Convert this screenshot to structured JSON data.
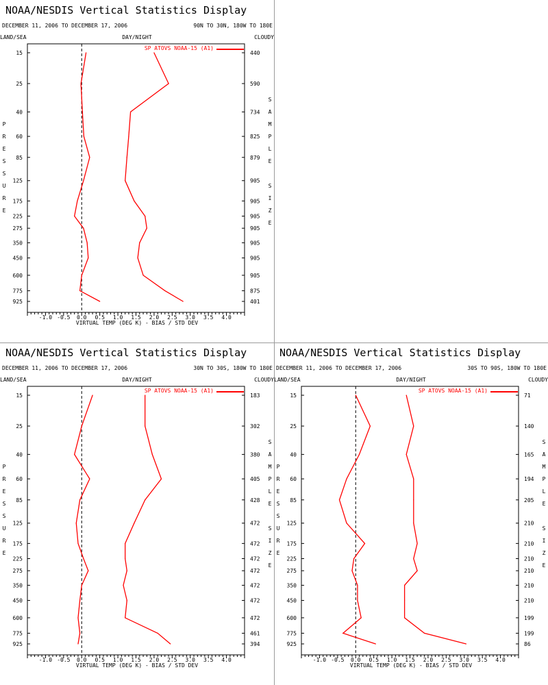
{
  "colors": {
    "series": "#ff0000",
    "axis": "#000000",
    "zero_line": "#000000"
  },
  "chart_data": [
    {
      "type": "line",
      "title": "NOAA/NESDIS Vertical Statistics Display",
      "date_range": "DECEMBER 11, 2006 TO DECEMBER 17, 2006",
      "region": "90N TO 30N, 180W TO 180E",
      "left_header": "LAND/SEA",
      "center_header": "DAY/NIGHT",
      "right_header": "CLOUDY",
      "xlabel": "VIRTUAL TEMP (DEG K) - BIAS / STD DEV",
      "ylabel": "PRESSURE",
      "right_label": "SAMPLE SIZE",
      "legend": "SP ATOVS NOAA-15 (A1)",
      "xlim": [
        -1.5,
        4.5
      ],
      "x_ticks": [
        "-1.0",
        "-0.5",
        "0.0",
        "0.5",
        "1.0",
        "1.5",
        "2.0",
        "2.5",
        "3.0",
        "3.5",
        "4.0"
      ],
      "pressure_levels": [
        15,
        25,
        40,
        60,
        85,
        125,
        175,
        225,
        275,
        350,
        450,
        600,
        775,
        925
      ],
      "sample_size": [
        "440",
        "590",
        "734",
        "825",
        "879",
        "905",
        "905",
        "905",
        "905",
        "905",
        "905",
        "905",
        "875",
        "401"
      ],
      "series": [
        {
          "name": "bias",
          "values": [
            0.12,
            -0.02,
            0.02,
            0.06,
            0.22,
            0.05,
            -0.12,
            -0.2,
            0.05,
            0.15,
            0.18,
            0.0,
            -0.05,
            0.5
          ]
        },
        {
          "name": "std_dev",
          "values": [
            2.0,
            2.4,
            1.35,
            1.3,
            1.25,
            1.2,
            1.45,
            1.75,
            1.8,
            1.6,
            1.55,
            1.7,
            2.3,
            2.8
          ]
        }
      ]
    },
    {
      "type": "line",
      "title": "NOAA/NESDIS Vertical Statistics Display",
      "date_range": "DECEMBER 11, 2006 TO DECEMBER 17, 2006",
      "region": "30N TO 30S, 180W TO 180E",
      "left_header": "LAND/SEA",
      "center_header": "DAY/NIGHT",
      "right_header": "CLOUDY",
      "xlabel": "VIRTUAL TEMP (DEG K) - BIAS / STD DEV",
      "ylabel": "PRESSURE",
      "right_label": "SAMPLE SIZE",
      "legend": "SP ATOVS NOAA-15 (A1)",
      "xlim": [
        -1.5,
        4.5
      ],
      "x_ticks": [
        "-1.0",
        "-0.5",
        "0.0",
        "0.5",
        "1.0",
        "1.5",
        "2.0",
        "2.5",
        "3.0",
        "3.5",
        "4.0"
      ],
      "pressure_levels": [
        15,
        25,
        40,
        60,
        85,
        125,
        175,
        225,
        275,
        350,
        450,
        600,
        775,
        925
      ],
      "sample_size": [
        "183",
        "302",
        "380",
        "405",
        "428",
        "472",
        "472",
        "472",
        "472",
        "472",
        "472",
        "472",
        "461",
        "394"
      ],
      "series": [
        {
          "name": "bias",
          "values": [
            0.3,
            0.0,
            -0.2,
            0.22,
            -0.05,
            -0.15,
            -0.1,
            0.05,
            0.18,
            0.0,
            -0.05,
            -0.1,
            -0.05,
            -0.1
          ]
        },
        {
          "name": "std_dev",
          "values": [
            1.75,
            1.75,
            1.95,
            2.2,
            1.75,
            1.45,
            1.2,
            1.2,
            1.25,
            1.15,
            1.25,
            1.2,
            2.1,
            2.45
          ]
        }
      ]
    },
    {
      "type": "line",
      "title": "NOAA/NESDIS Vertical Statistics Display",
      "date_range": "DECEMBER 11, 2006 TO DECEMBER 17, 2006",
      "region": "30S TO 90S, 180W TO 180E",
      "left_header": "LAND/SEA",
      "center_header": "DAY/NIGHT",
      "right_header": "CLOUDY",
      "xlabel": "VIRTUAL TEMP (DEG K) - BIAS / STD DEV",
      "ylabel": "PRESSURE",
      "right_label": "SAMPLE SIZE",
      "legend": "SP ATOVS NOAA-15 (A1)",
      "xlim": [
        -1.5,
        4.5
      ],
      "x_ticks": [
        "-1.0",
        "-0.5",
        "0.0",
        "0.5",
        "1.0",
        "1.5",
        "2.0",
        "2.5",
        "3.0",
        "3.5",
        "4.0"
      ],
      "pressure_levels": [
        15,
        25,
        40,
        60,
        85,
        125,
        175,
        225,
        275,
        350,
        450,
        600,
        775,
        925
      ],
      "sample_size": [
        "71",
        "140",
        "165",
        "194",
        "205",
        "210",
        "210",
        "210",
        "210",
        "210",
        "210",
        "199",
        "199",
        "86"
      ],
      "series": [
        {
          "name": "bias",
          "values": [
            0.0,
            0.4,
            0.1,
            -0.25,
            -0.45,
            -0.25,
            0.25,
            -0.05,
            -0.1,
            0.05,
            0.05,
            0.15,
            -0.35,
            0.55
          ]
        },
        {
          "name": "std_dev",
          "values": [
            1.4,
            1.6,
            1.4,
            1.6,
            1.6,
            1.6,
            1.7,
            1.6,
            1.7,
            1.35,
            1.35,
            1.35,
            1.9,
            3.05
          ]
        }
      ]
    }
  ]
}
